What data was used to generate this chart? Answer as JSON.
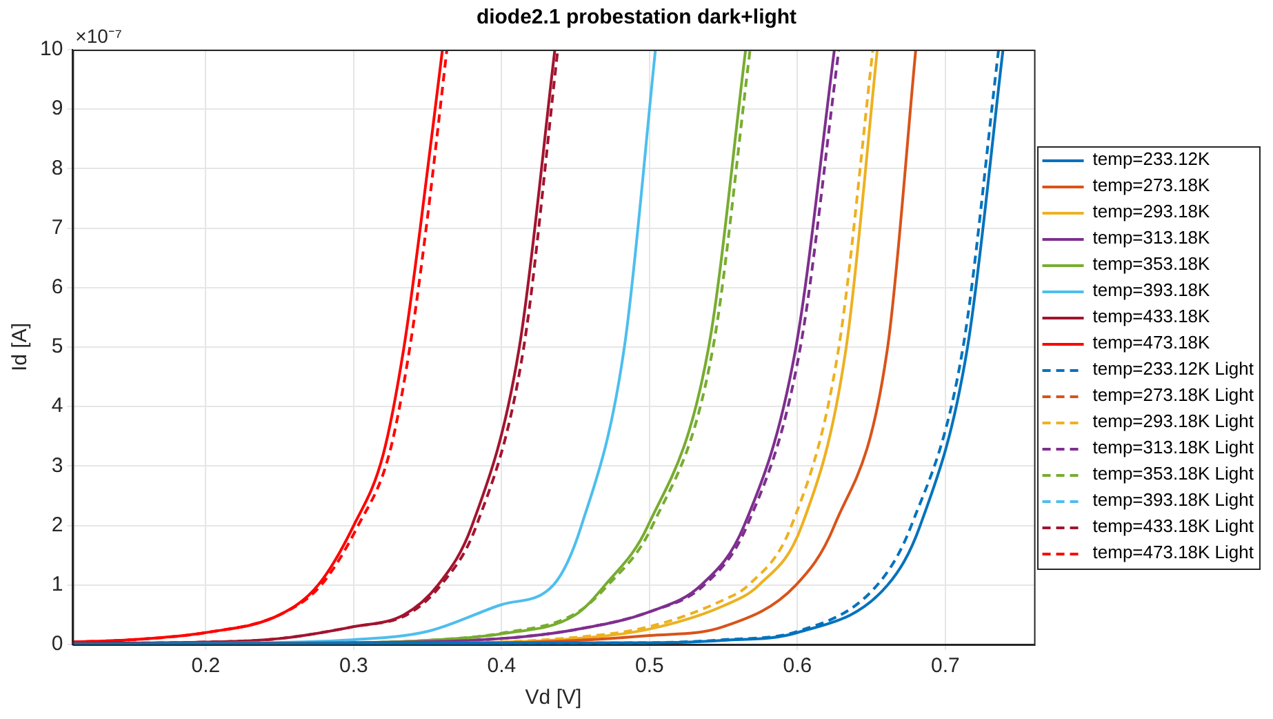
{
  "chart_data": {
    "type": "line",
    "title": "diode2.1 probestation dark+light",
    "xlabel": "Vd [V]",
    "ylabel": "Id [A]",
    "annotations": [
      "×10⁻⁷"
    ],
    "xlim": [
      0.11,
      0.76
    ],
    "xticks": [
      0.2,
      0.3,
      0.4,
      0.5,
      0.6,
      0.7
    ],
    "ylim": [
      0,
      10
    ],
    "yticks": [
      0,
      1,
      2,
      3,
      4,
      5,
      6,
      7,
      8,
      9,
      10
    ],
    "grid": true,
    "legend": "right",
    "marker": "none",
    "series": [
      {
        "name": "temp=233.12K",
        "color": "#0072bd",
        "line_style": "solid",
        "x": [
          0.11,
          0.5,
          0.55,
          0.6,
          0.661,
          0.683,
          0.715,
          0.739
        ],
        "values": [
          0.01,
          0.03,
          0.07,
          0.2,
          1,
          2,
          5,
          10
        ]
      },
      {
        "name": "temp=273.18K",
        "color": "#d95319",
        "line_style": "solid",
        "x": [
          0.11,
          0.4,
          0.5,
          0.55,
          0.599,
          0.625,
          0.661,
          0.68
        ],
        "values": [
          0.01,
          0.03,
          0.15,
          0.3,
          1,
          2,
          5,
          10
        ]
      },
      {
        "name": "temp=293.18K",
        "color": "#edb120",
        "line_style": "solid",
        "x": [
          0.11,
          0.35,
          0.45,
          0.5,
          0.55,
          0.574,
          0.603,
          0.633,
          0.654
        ],
        "values": [
          0.01,
          0.02,
          0.1,
          0.26,
          0.65,
          1,
          2,
          5,
          10
        ]
      },
      {
        "name": "temp=313.18K",
        "color": "#7e2f8e",
        "line_style": "solid",
        "x": [
          0.11,
          0.3,
          0.4,
          0.45,
          0.5,
          0.535,
          0.564,
          0.599,
          0.625
        ],
        "values": [
          0.01,
          0.03,
          0.1,
          0.25,
          0.55,
          1,
          2,
          5,
          10
        ]
      },
      {
        "name": "temp=353.18K",
        "color": "#77ac30",
        "line_style": "solid",
        "x": [
          0.11,
          0.3,
          0.35,
          0.4,
          0.45,
          0.47,
          0.499,
          0.54,
          0.565
        ],
        "values": [
          0.01,
          0.03,
          0.07,
          0.18,
          0.5,
          1,
          2,
          5,
          10
        ]
      },
      {
        "name": "temp=393.18K",
        "color": "#4dbeee",
        "line_style": "solid",
        "x": [
          0.11,
          0.2,
          0.3,
          0.35,
          0.4,
          0.435,
          0.454,
          0.483,
          0.504
        ],
        "values": [
          0.01,
          0.02,
          0.08,
          0.22,
          0.67,
          1,
          2,
          5,
          10
        ]
      },
      {
        "name": "temp=433.18K",
        "color": "#a2142f",
        "line_style": "solid",
        "x": [
          0.11,
          0.2,
          0.25,
          0.3,
          0.334,
          0.357,
          0.38,
          0.412,
          0.436
        ],
        "values": [
          0.02,
          0.04,
          0.1,
          0.3,
          0.5,
          1,
          2,
          5,
          10
        ]
      },
      {
        "name": "temp=473.18K",
        "color": "#ff0000",
        "line_style": "solid",
        "x": [
          0.11,
          0.15,
          0.2,
          0.25,
          0.276,
          0.3,
          0.32,
          0.334,
          0.345,
          0.36
        ],
        "values": [
          0.04,
          0.08,
          0.2,
          0.5,
          1,
          2,
          3.2,
          5,
          7,
          10
        ]
      },
      {
        "name": "temp=233.12K Light",
        "color": "#0072bd",
        "line_style": "dashed",
        "x": [
          0.11,
          0.5,
          0.55,
          0.6,
          0.654,
          0.677,
          0.712,
          0.736
        ],
        "values": [
          0.01,
          0.03,
          0.08,
          0.22,
          1,
          2,
          5,
          10
        ]
      },
      {
        "name": "temp=273.18K Light",
        "color": "#d95319",
        "line_style": "dashed"
      },
      {
        "name": "temp=293.18K Light",
        "color": "#edb120",
        "line_style": "dashed",
        "x": [
          0.11,
          0.35,
          0.45,
          0.5,
          0.55,
          0.567,
          0.596,
          0.628,
          0.651
        ],
        "values": [
          0.01,
          0.02,
          0.12,
          0.3,
          0.75,
          1,
          2,
          5,
          10
        ]
      },
      {
        "name": "temp=313.18K Light",
        "color": "#7e2f8e",
        "line_style": "dashed",
        "x": [
          0.11,
          0.3,
          0.4,
          0.45,
          0.5,
          0.537,
          0.566,
          0.602,
          0.628
        ],
        "values": [
          0.01,
          0.03,
          0.1,
          0.25,
          0.55,
          1,
          2,
          5,
          10
        ]
      },
      {
        "name": "temp=353.18K Light",
        "color": "#77ac30",
        "line_style": "dashed",
        "x": [
          0.11,
          0.3,
          0.35,
          0.4,
          0.45,
          0.472,
          0.502,
          0.543,
          0.568
        ],
        "values": [
          0.01,
          0.03,
          0.07,
          0.19,
          0.52,
          1,
          2,
          5,
          10
        ]
      },
      {
        "name": "temp=393.18K Light",
        "color": "#4dbeee",
        "line_style": "dashed"
      },
      {
        "name": "temp=433.18K Light",
        "color": "#a2142f",
        "line_style": "dashed",
        "x": [
          0.11,
          0.2,
          0.25,
          0.3,
          0.336,
          0.359,
          0.383,
          0.415,
          0.438
        ],
        "values": [
          0.02,
          0.04,
          0.1,
          0.3,
          0.5,
          1,
          2,
          5,
          10
        ]
      },
      {
        "name": "temp=473.18K Light",
        "color": "#ff0000",
        "line_style": "dashed",
        "x": [
          0.11,
          0.15,
          0.2,
          0.25,
          0.278,
          0.303,
          0.324,
          0.338,
          0.349,
          0.363
        ],
        "values": [
          0.04,
          0.08,
          0.2,
          0.5,
          1,
          2,
          3.2,
          5,
          7,
          10
        ]
      }
    ]
  }
}
